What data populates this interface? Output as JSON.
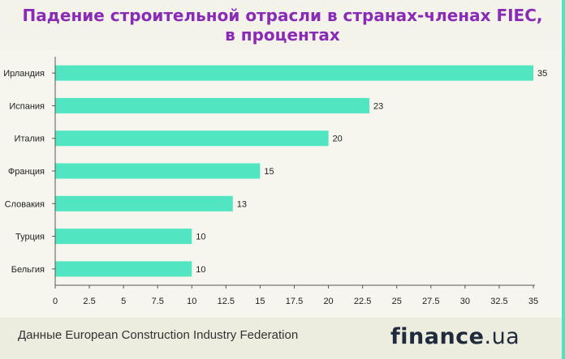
{
  "header": {
    "title_line1": "Падение строительной отрасли в странах-членах FIEC,",
    "title_line2": "в процентах"
  },
  "footer": {
    "source": "Данные European Construction Industry Federation",
    "logo_bold": "finance",
    "logo_light": ".ua"
  },
  "colors": {
    "bar": "#52e5c2",
    "title": "#8a2bb7",
    "axis": "#555555"
  },
  "chart_data": {
    "type": "bar",
    "orientation": "horizontal",
    "categories": [
      "Ирландия",
      "Испания",
      "Италия",
      "Франция",
      "Словакия",
      "Турция",
      "Бельгия"
    ],
    "values": [
      35,
      23,
      20,
      15,
      13,
      10,
      10
    ],
    "data_labels": [
      "35",
      "23",
      "20",
      "15",
      "13",
      "10",
      "10"
    ],
    "xlim": [
      0,
      35
    ],
    "xticks": [
      0,
      2.5,
      5,
      7.5,
      10,
      12.5,
      15,
      17.5,
      20,
      22.5,
      25,
      27.5,
      30,
      32.5,
      35
    ],
    "xtick_labels": [
      "0",
      "2.5",
      "5",
      "7.5",
      "10",
      "12.5",
      "15",
      "17.5",
      "20",
      "22.5",
      "25",
      "27.5",
      "30",
      "32.5",
      "35"
    ],
    "grid": false,
    "legend": "none"
  }
}
